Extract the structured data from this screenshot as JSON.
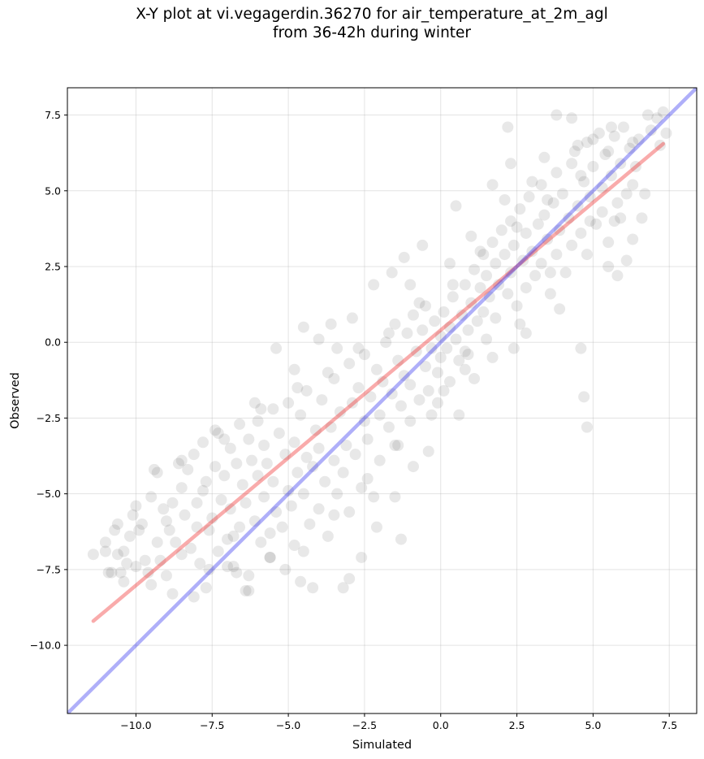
{
  "chart_data": {
    "type": "scatter",
    "title": "X-Y plot at vi.vegagerdin.36270 for air_temperature_at_2m_agl\nfrom 36-42h during winter",
    "xlabel": "Simulated",
    "ylabel": "Observed",
    "xlim": [
      -12.25,
      8.4
    ],
    "ylim": [
      -12.25,
      8.4
    ],
    "xticks": [
      -10.0,
      -7.5,
      -5.0,
      -2.5,
      0.0,
      2.5,
      5.0,
      7.5
    ],
    "xtick_labels": [
      "−10.0",
      "−7.5",
      "−5.0",
      "−2.5",
      "0.0",
      "2.5",
      "5.0",
      "7.5"
    ],
    "yticks": [
      -10.0,
      -7.5,
      -5.0,
      -2.5,
      0.0,
      2.5,
      5.0,
      7.5
    ],
    "ytick_labels": [
      "−10.0",
      "−7.5",
      "−5.0",
      "−2.5",
      "0.0",
      "2.5",
      "5.0",
      "7.5"
    ],
    "grid": true,
    "point_color": "#000000",
    "point_opacity": 0.09,
    "points": [
      [
        -11.4,
        -7.0
      ],
      [
        -11.0,
        -6.6
      ],
      [
        -11.0,
        -6.9
      ],
      [
        -10.9,
        -7.6
      ],
      [
        -10.8,
        -7.6
      ],
      [
        -10.7,
        -6.2
      ],
      [
        -10.6,
        -6.0
      ],
      [
        -10.5,
        -7.6
      ],
      [
        -10.4,
        -6.9
      ],
      [
        -10.3,
        -7.3
      ],
      [
        -10.2,
        -6.4
      ],
      [
        -10.1,
        -5.7
      ],
      [
        -10.0,
        -5.4
      ],
      [
        -10.0,
        -7.4
      ],
      [
        -9.9,
        -6.2
      ],
      [
        -9.8,
        -6.0
      ],
      [
        -9.7,
        -7.2
      ],
      [
        -9.6,
        -7.6
      ],
      [
        -9.5,
        -5.1
      ],
      [
        -9.4,
        -4.2
      ],
      [
        -9.3,
        -4.3
      ],
      [
        -9.3,
        -6.6
      ],
      [
        -9.2,
        -7.2
      ],
      [
        -9.1,
        -5.5
      ],
      [
        -9.0,
        -5.9
      ],
      [
        -8.9,
        -6.2
      ],
      [
        -8.8,
        -5.3
      ],
      [
        -8.7,
        -6.6
      ],
      [
        -8.6,
        -4.0
      ],
      [
        -8.5,
        -4.8
      ],
      [
        -8.5,
        -7.0
      ],
      [
        -8.4,
        -5.7
      ],
      [
        -8.3,
        -4.2
      ],
      [
        -8.2,
        -6.8
      ],
      [
        -8.1,
        -3.7
      ],
      [
        -8.0,
        -5.3
      ],
      [
        -8.0,
        -6.1
      ],
      [
        -7.9,
        -7.3
      ],
      [
        -7.8,
        -4.9
      ],
      [
        -7.8,
        -3.3
      ],
      [
        -7.7,
        -4.6
      ],
      [
        -7.6,
        -6.2
      ],
      [
        -7.5,
        -5.8
      ],
      [
        -7.4,
        -4.1
      ],
      [
        -7.3,
        -6.9
      ],
      [
        -7.3,
        -3.0
      ],
      [
        -7.2,
        -5.2
      ],
      [
        -7.1,
        -4.4
      ],
      [
        -7.0,
        -6.5
      ],
      [
        -6.9,
        -3.5
      ],
      [
        -6.9,
        -5.5
      ],
      [
        -6.8,
        -7.4
      ],
      [
        -6.7,
        -4.0
      ],
      [
        -6.6,
        -2.7
      ],
      [
        -6.6,
        -6.1
      ],
      [
        -6.5,
        -4.7
      ],
      [
        -6.4,
        -5.3
      ],
      [
        -6.3,
        -3.2
      ],
      [
        -6.3,
        -7.7
      ],
      [
        -6.2,
        -3.9
      ],
      [
        -6.1,
        -5.9
      ],
      [
        -6.0,
        -4.4
      ],
      [
        -6.0,
        -2.6
      ],
      [
        -5.9,
        -6.6
      ],
      [
        -5.8,
        -3.4
      ],
      [
        -5.8,
        -5.1
      ],
      [
        -5.7,
        -4.0
      ],
      [
        -5.6,
        -7.1
      ],
      [
        -5.5,
        -2.2
      ],
      [
        -5.5,
        -4.6
      ],
      [
        -5.4,
        -5.6
      ],
      [
        -5.3,
        -3.0
      ],
      [
        -5.2,
        -6.1
      ],
      [
        -5.1,
        -3.7
      ],
      [
        -5.0,
        -4.9
      ],
      [
        -5.0,
        -2.0
      ],
      [
        -4.9,
        -5.4
      ],
      [
        -4.8,
        -3.3
      ],
      [
        -4.8,
        -6.7
      ],
      [
        -4.7,
        -4.3
      ],
      [
        -4.6,
        -2.4
      ],
      [
        -4.5,
        -5.0
      ],
      [
        -4.4,
        -3.8
      ],
      [
        -4.4,
        -1.6
      ],
      [
        -4.3,
        -6.0
      ],
      [
        -4.2,
        -4.1
      ],
      [
        -4.1,
        -2.9
      ],
      [
        -4.0,
        -5.5
      ],
      [
        -4.0,
        -3.5
      ],
      [
        -3.9,
        -1.9
      ],
      [
        -3.8,
        -4.6
      ],
      [
        -3.7,
        -6.4
      ],
      [
        -3.6,
        -2.8
      ],
      [
        -3.5,
        -3.9
      ],
      [
        -3.5,
        -1.2
      ],
      [
        -3.4,
        -5.0
      ],
      [
        -3.3,
        -2.3
      ],
      [
        -3.2,
        -4.3
      ],
      [
        -3.1,
        -3.4
      ],
      [
        -3.0,
        -0.7
      ],
      [
        -3.0,
        -5.6
      ],
      [
        -2.9,
        -2.0
      ],
      [
        -2.8,
        -3.7
      ],
      [
        -2.7,
        -1.5
      ],
      [
        -2.6,
        -4.8
      ],
      [
        -2.5,
        -2.6
      ],
      [
        -2.5,
        -0.4
      ],
      [
        -2.4,
        -3.2
      ],
      [
        -2.3,
        -1.8
      ],
      [
        -2.2,
        -5.1
      ],
      [
        -2.1,
        -0.9
      ],
      [
        -2.0,
        -2.4
      ],
      [
        -2.0,
        -3.9
      ],
      [
        -1.9,
        -1.3
      ],
      [
        -1.8,
        0.0
      ],
      [
        -1.7,
        -2.8
      ],
      [
        -1.6,
        -1.7
      ],
      [
        -1.5,
        0.6
      ],
      [
        -1.5,
        -3.4
      ],
      [
        -1.4,
        -0.6
      ],
      [
        -1.3,
        -2.1
      ],
      [
        -1.2,
        -1.1
      ],
      [
        -1.1,
        0.3
      ],
      [
        -1.0,
        -2.6
      ],
      [
        -1.0,
        -1.4
      ],
      [
        -0.9,
        0.9
      ],
      [
        -0.8,
        -0.3
      ],
      [
        -0.7,
        -1.9
      ],
      [
        -0.6,
        0.4
      ],
      [
        -0.5,
        -0.8
      ],
      [
        -0.5,
        1.2
      ],
      [
        -0.4,
        -1.6
      ],
      [
        -0.3,
        -0.2
      ],
      [
        -0.2,
        0.7
      ],
      [
        -0.1,
        -1.0
      ],
      [
        0.0,
        0.2
      ],
      [
        0.0,
        -0.5
      ],
      [
        0.1,
        1.0
      ],
      [
        0.2,
        -0.2
      ],
      [
        0.3,
        0.5
      ],
      [
        0.3,
        -1.3
      ],
      [
        0.4,
        1.5
      ],
      [
        0.5,
        0.1
      ],
      [
        0.6,
        -0.6
      ],
      [
        0.7,
        0.9
      ],
      [
        0.8,
        1.9
      ],
      [
        0.8,
        -0.3
      ],
      [
        0.9,
        0.4
      ],
      [
        1.0,
        1.3
      ],
      [
        1.1,
        2.4
      ],
      [
        1.2,
        0.7
      ],
      [
        1.3,
        1.8
      ],
      [
        1.3,
        3.0
      ],
      [
        1.4,
        1.0
      ],
      [
        1.5,
        2.2
      ],
      [
        1.6,
        1.5
      ],
      [
        1.7,
        3.3
      ],
      [
        1.8,
        2.6
      ],
      [
        1.8,
        0.8
      ],
      [
        1.9,
        1.9
      ],
      [
        2.0,
        3.7
      ],
      [
        2.1,
        2.9
      ],
      [
        2.2,
        1.6
      ],
      [
        2.3,
        4.0
      ],
      [
        2.3,
        2.3
      ],
      [
        2.4,
        3.2
      ],
      [
        2.5,
        1.2
      ],
      [
        2.6,
        4.4
      ],
      [
        2.7,
        2.7
      ],
      [
        2.8,
        3.6
      ],
      [
        2.8,
        1.8
      ],
      [
        2.9,
        4.8
      ],
      [
        3.0,
        3.0
      ],
      [
        3.1,
        2.2
      ],
      [
        3.2,
        3.9
      ],
      [
        3.3,
        5.2
      ],
      [
        3.3,
        2.6
      ],
      [
        3.4,
        4.2
      ],
      [
        3.5,
        3.4
      ],
      [
        3.6,
        1.6
      ],
      [
        3.7,
        4.6
      ],
      [
        3.8,
        2.9
      ],
      [
        3.8,
        5.6
      ],
      [
        3.9,
        3.7
      ],
      [
        4.0,
        4.9
      ],
      [
        4.1,
        2.3
      ],
      [
        4.2,
        4.1
      ],
      [
        4.3,
        5.9
      ],
      [
        4.3,
        3.2
      ],
      [
        4.4,
        6.3
      ],
      [
        4.5,
        4.5
      ],
      [
        4.6,
        3.6
      ],
      [
        4.7,
        5.3
      ],
      [
        4.8,
        6.6
      ],
      [
        4.8,
        2.9
      ],
      [
        4.9,
        4.8
      ],
      [
        5.0,
        5.8
      ],
      [
        5.1,
        3.9
      ],
      [
        5.2,
        6.9
      ],
      [
        5.3,
        5.1
      ],
      [
        5.3,
        4.3
      ],
      [
        5.4,
        6.2
      ],
      [
        5.5,
        3.3
      ],
      [
        5.6,
        5.5
      ],
      [
        5.7,
        6.8
      ],
      [
        5.8,
        4.6
      ],
      [
        5.8,
        2.2
      ],
      [
        5.9,
        5.9
      ],
      [
        6.0,
        7.1
      ],
      [
        6.1,
        4.9
      ],
      [
        6.2,
        6.4
      ],
      [
        6.3,
        5.2
      ],
      [
        6.5,
        6.7
      ],
      [
        6.7,
        4.9
      ],
      [
        6.9,
        7.0
      ],
      [
        7.1,
        7.4
      ],
      [
        7.3,
        7.6
      ],
      [
        7.4,
        6.9
      ],
      [
        -6.4,
        -8.2
      ],
      [
        -5.1,
        -7.5
      ],
      [
        -4.6,
        -7.9
      ],
      [
        -4.2,
        -8.1
      ],
      [
        -3.0,
        -7.8
      ],
      [
        -2.6,
        -7.1
      ],
      [
        -3.2,
        -8.1
      ],
      [
        -1.3,
        -6.5
      ],
      [
        -8.8,
        -8.3
      ],
      [
        -8.1,
        -8.4
      ],
      [
        -5.4,
        -0.2
      ],
      [
        -4.5,
        0.5
      ],
      [
        -4.0,
        0.1
      ],
      [
        -3.6,
        0.6
      ],
      [
        -0.6,
        3.2
      ],
      [
        -1.6,
        2.3
      ],
      [
        -1.2,
        2.8
      ],
      [
        0.5,
        4.5
      ],
      [
        1.7,
        5.2
      ],
      [
        2.3,
        5.9
      ],
      [
        2.2,
        7.1
      ],
      [
        3.8,
        7.5
      ],
      [
        4.3,
        7.4
      ],
      [
        4.6,
        -0.2
      ],
      [
        4.7,
        -1.8
      ],
      [
        4.8,
        -2.8
      ],
      [
        3.9,
        1.1
      ],
      [
        2.4,
        -0.2
      ],
      [
        1.1,
        -1.2
      ],
      [
        0.6,
        -2.4
      ],
      [
        -0.1,
        -2.0
      ],
      [
        0.1,
        -1.6
      ],
      [
        5.5,
        2.5
      ],
      [
        6.1,
        2.7
      ],
      [
        6.3,
        3.4
      ],
      [
        5.9,
        4.1
      ],
      [
        6.6,
        4.1
      ],
      [
        1.5,
        0.1
      ],
      [
        2.8,
        0.3
      ],
      [
        0.9,
        -0.4
      ],
      [
        -2.1,
        -6.1
      ],
      [
        -1.5,
        -5.1
      ],
      [
        -0.9,
        -4.1
      ],
      [
        -0.4,
        -3.6
      ],
      [
        -7.6,
        -7.5
      ],
      [
        -6.8,
        -6.4
      ],
      [
        -7.0,
        -7.4
      ],
      [
        -9.0,
        -7.7
      ],
      [
        -10.4,
        -7.9
      ],
      [
        -6.3,
        -8.2
      ],
      [
        -5.6,
        -6.3
      ],
      [
        -7.4,
        -2.9
      ],
      [
        -6.1,
        -2.0
      ],
      [
        -4.7,
        -1.5
      ],
      [
        -3.4,
        -0.2
      ],
      [
        -2.9,
        0.8
      ],
      [
        -2.2,
        1.9
      ],
      [
        -1.0,
        1.9
      ],
      [
        0.3,
        2.6
      ],
      [
        1.0,
        3.5
      ],
      [
        2.1,
        4.7
      ],
      [
        3.0,
        5.3
      ],
      [
        3.4,
        6.1
      ],
      [
        4.5,
        6.5
      ],
      [
        5.0,
        6.7
      ],
      [
        5.6,
        7.1
      ],
      [
        6.8,
        7.5
      ],
      [
        7.2,
        6.5
      ],
      [
        6.4,
        5.8
      ],
      [
        5.7,
        4.0
      ],
      [
        4.9,
        4.0
      ],
      [
        3.6,
        2.3
      ],
      [
        2.6,
        0.6
      ],
      [
        1.7,
        -0.5
      ],
      [
        0.8,
        -0.9
      ],
      [
        -0.3,
        -2.4
      ],
      [
        -1.4,
        -3.4
      ],
      [
        -2.4,
        -4.5
      ],
      [
        -3.5,
        -5.7
      ],
      [
        -4.5,
        -6.9
      ],
      [
        -5.6,
        -7.1
      ],
      [
        -6.7,
        -7.6
      ],
      [
        -7.7,
        -8.1
      ],
      [
        -9.5,
        -8.0
      ],
      [
        -10.6,
        -7.0
      ],
      [
        -8.5,
        -3.9
      ],
      [
        -7.1,
        -3.2
      ],
      [
        -5.9,
        -2.2
      ],
      [
        -4.8,
        -0.9
      ],
      [
        -3.7,
        -1.0
      ],
      [
        -2.7,
        -0.2
      ],
      [
        -1.7,
        0.3
      ],
      [
        -0.7,
        1.3
      ],
      [
        0.4,
        1.9
      ],
      [
        1.4,
        2.9
      ],
      [
        2.5,
        3.8
      ],
      [
        3.5,
        4.7
      ],
      [
        4.6,
        5.5
      ],
      [
        5.5,
        6.3
      ],
      [
        6.3,
        6.6
      ]
    ],
    "series": [
      {
        "name": "",
        "type": "line",
        "color": "#ee2222",
        "opacity": 0.38,
        "x": [
          -11.4,
          7.3
        ],
        "y": [
          -9.2,
          6.55
        ]
      },
      {
        "name": "",
        "type": "line",
        "color": "#2222ee",
        "opacity": 0.36,
        "x": [
          -12.25,
          8.4
        ],
        "y": [
          -12.25,
          8.4
        ]
      }
    ]
  }
}
